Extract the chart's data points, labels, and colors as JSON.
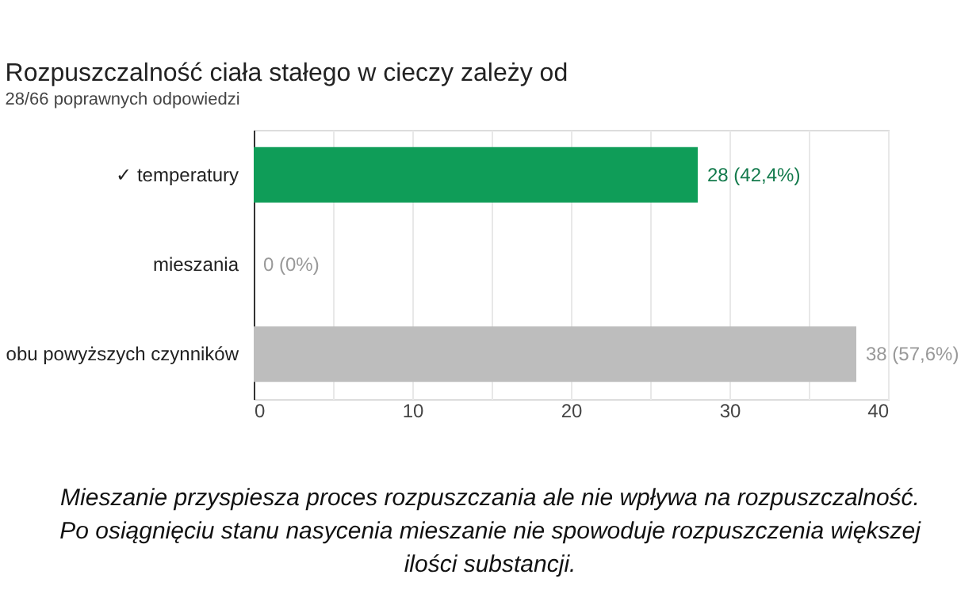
{
  "chart_data": {
    "type": "bar",
    "orientation": "horizontal",
    "title": "Rozpuszczalność ciała stałego w cieczy zależy od",
    "subtitle": "28/66 poprawnych odpowiedzi",
    "categories": [
      "✓ temperatury",
      "mieszania",
      "obu powyższych czynników"
    ],
    "values": [
      28,
      0,
      38
    ],
    "colors": [
      "#0f9d58",
      "#bdbdbd",
      "#bdbdbd"
    ],
    "value_labels": [
      "28 (42,4%)",
      "0 (0%)",
      "38 (57,6%)"
    ],
    "xlim": [
      0,
      40
    ],
    "xticks": [
      0,
      {
        "value": 5,
        "label": null
      },
      10,
      {
        "value": 15,
        "label": null
      },
      20,
      {
        "value": 25,
        "label": null
      },
      30,
      {
        "value": 35,
        "label": null
      },
      40
    ],
    "grid": "x",
    "legend": false,
    "annotations": [
      "Mieszanie przyspiesza proces rozpuszczania ale nie wpływa na rozpuszczalność.",
      "Po osiągnięciu stanu nasycenia mieszanie nie spowoduje rozpuszczenia większej",
      "ilości substancji."
    ]
  }
}
